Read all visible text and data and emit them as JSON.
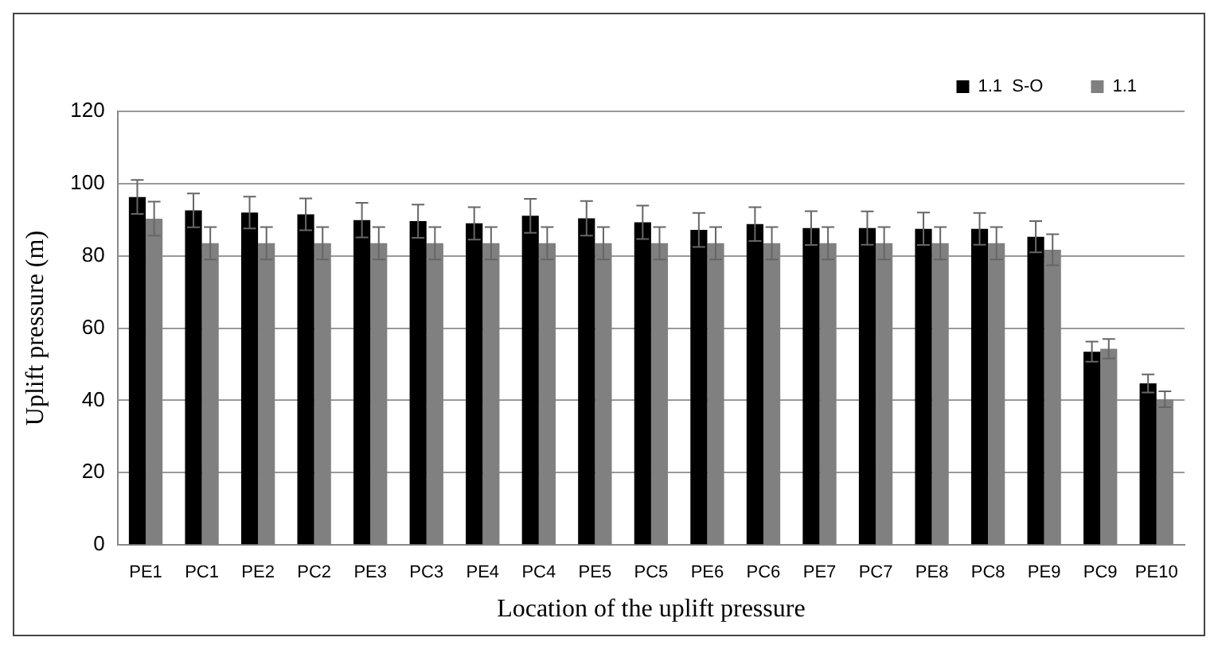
{
  "chart_data": {
    "type": "bar",
    "xlabel": "Location of the uplift pressure",
    "ylabel": "Uplift pressure (m)",
    "categories": [
      "PE1",
      "PC1",
      "PE2",
      "PC2",
      "PE3",
      "PC3",
      "PE4",
      "PC4",
      "PE5",
      "PC5",
      "PE6",
      "PC6",
      "PE7",
      "PC7",
      "PE8",
      "PC8",
      "PE9",
      "PC9",
      "PE10"
    ],
    "series": [
      {
        "name": "1.1  S-O",
        "color": "#000000",
        "values": [
          96.3,
          92.6,
          92,
          91.5,
          89.9,
          89.6,
          89,
          91.1,
          90.4,
          89.3,
          87.2,
          88.8,
          87.7,
          87.7,
          87.5,
          87.5,
          85.3,
          53.5,
          44.7
        ],
        "errors": [
          4.7,
          4.7,
          4.4,
          4.4,
          4.8,
          4.6,
          4.5,
          4.7,
          4.8,
          4.6,
          4.7,
          4.7,
          4.7,
          4.6,
          4.5,
          4.4,
          4.3,
          2.8,
          2.5
        ]
      },
      {
        "name": "1.1",
        "color": "#808080",
        "values": [
          90.3,
          83.5,
          83.5,
          83.5,
          83.5,
          83.5,
          83.5,
          83.5,
          83.5,
          83.5,
          83.5,
          83.5,
          83.5,
          83.5,
          83.5,
          83.5,
          81.7,
          54.3,
          40.3
        ],
        "errors": [
          4.7,
          4.5,
          4.5,
          4.5,
          4.5,
          4.5,
          4.5,
          4.5,
          4.5,
          4.5,
          4.5,
          4.5,
          4.5,
          4.5,
          4.5,
          4.5,
          4.3,
          2.7,
          2.2
        ]
      }
    ],
    "ylim": [
      0,
      120
    ],
    "yticks": [
      0,
      20,
      40,
      60,
      80,
      100,
      120
    ],
    "grid": "y",
    "legend": "top right"
  }
}
